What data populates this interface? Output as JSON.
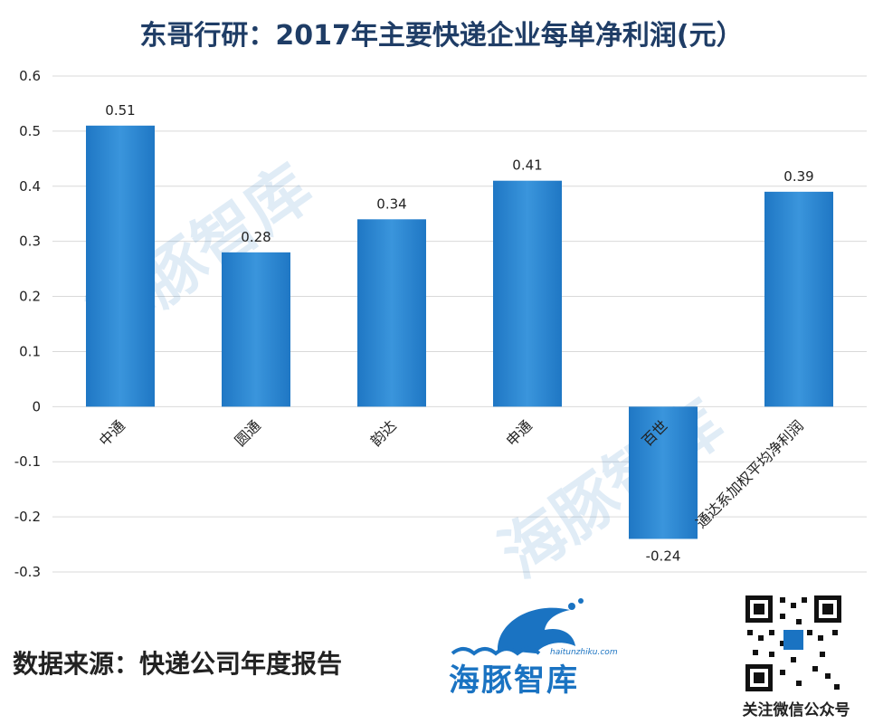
{
  "title": "东哥行研：2017年主要快递企业每单净利润(元）",
  "source": "数据来源：快递公司年度报告",
  "logo": {
    "name": "海豚智库",
    "url": "haitunzhiku.com"
  },
  "qr_caption": "关注微信公众号",
  "colors": {
    "bar": "#1f77c4",
    "bar_light": "#3a95dc",
    "grid": "#d9d9d9",
    "axis_text": "#222222",
    "title": "#1f3d66",
    "watermark": "#1a73c2"
  },
  "icons": {
    "logo": "dolphin-wave-logo",
    "qr": "qr-code"
  },
  "chart_data": {
    "type": "bar",
    "title": "东哥行研：2017年主要快递企业每单净利润(元）",
    "categories": [
      "中通",
      "圆通",
      "韵达",
      "申通",
      "百世",
      "通达系加权平均净利润"
    ],
    "values": [
      0.51,
      0.28,
      0.34,
      0.41,
      -0.24,
      0.39
    ],
    "value_labels": [
      "0.51",
      "0.28",
      "0.34",
      "0.41",
      "-0.24",
      "0.39"
    ],
    "ylim": [
      -0.3,
      0.6
    ],
    "yticks": [
      0.6,
      0.5,
      0.4,
      0.3,
      0.2,
      0.1,
      0,
      -0.1,
      -0.2,
      -0.3
    ],
    "ytick_labels": [
      "0.6",
      "0.5",
      "0.4",
      "0.3",
      "0.2",
      "0.1",
      "0",
      "-0.1",
      "-0.2",
      "-0.3"
    ],
    "xlabel": "",
    "ylabel": "",
    "grid": true,
    "legend": "none"
  }
}
